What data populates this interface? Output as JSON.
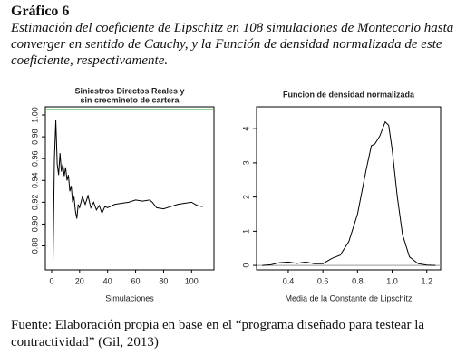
{
  "header": {
    "label": "Gráfico 6",
    "caption": "Estimación del coeficiente de Lipschitz en 108 simulaciones de Montecarlo hasta converger en sentido de Cauchy, y la Función de densidad normalizada de este coeficiente, respectivamente."
  },
  "chart_data": [
    {
      "type": "line",
      "title": [
        "Siniestros Directos Reales y",
        "sin crecmineto de cartera"
      ],
      "x_label": "Simulaciones",
      "color": "#000000",
      "x": [
        1,
        2,
        3,
        4,
        5,
        6,
        7,
        8,
        9,
        10,
        11,
        12,
        13,
        14,
        15,
        16,
        17,
        18,
        19,
        20,
        22,
        24,
        26,
        28,
        30,
        32,
        34,
        36,
        38,
        40,
        45,
        50,
        55,
        60,
        65,
        70,
        72,
        75,
        80,
        85,
        90,
        95,
        100,
        104,
        108
      ],
      "values": [
        0.865,
        0.96,
        0.995,
        0.955,
        0.945,
        0.965,
        0.948,
        0.955,
        0.944,
        0.952,
        0.94,
        0.945,
        0.93,
        0.935,
        0.92,
        0.925,
        0.912,
        0.905,
        0.918,
        0.915,
        0.925,
        0.918,
        0.926,
        0.915,
        0.92,
        0.913,
        0.917,
        0.91,
        0.916,
        0.915,
        0.918,
        0.919,
        0.92,
        0.922,
        0.921,
        0.922,
        0.92,
        0.915,
        0.914,
        0.916,
        0.918,
        0.919,
        0.92,
        0.917,
        0.916
      ],
      "xlim": [
        -4.5,
        116
      ],
      "ylim": [
        0.858,
        1.0075
      ],
      "xticks": [
        0,
        20,
        40,
        60,
        80,
        100
      ],
      "yticks": [
        0.88,
        {
          "value": 0.9,
          "label": "0.90"
        },
        0.92,
        0.94,
        0.96,
        0.98,
        {
          "value": 1,
          "label": "1.00"
        }
      ],
      "reference_line": {
        "value": 1.005,
        "color": "#33aa33"
      }
    },
    {
      "type": "line",
      "title": "Funcion de densidad normalizada",
      "x_label": "Media de la Constante de Lipschitz",
      "color": "#000000",
      "x": [
        0.25,
        0.3,
        0.35,
        0.4,
        0.45,
        0.5,
        0.55,
        0.6,
        0.65,
        0.7,
        0.75,
        0.8,
        0.85,
        0.88,
        0.9,
        0.93,
        0.96,
        0.98,
        1.0,
        1.03,
        1.06,
        1.1,
        1.15,
        1.2,
        1.25
      ],
      "values": [
        0.0,
        0.02,
        0.08,
        0.1,
        0.06,
        0.1,
        0.05,
        0.05,
        0.2,
        0.3,
        0.7,
        1.5,
        2.8,
        3.5,
        3.55,
        3.8,
        4.2,
        4.1,
        3.4,
        2.0,
        0.9,
        0.25,
        0.05,
        0.01,
        0.0
      ],
      "xlim": [
        0.217,
        1.28
      ],
      "ylim": [
        -0.13,
        4.64
      ],
      "xticks": [
        0.4,
        0.6,
        0.8,
        {
          "value": 1,
          "label": "1.0"
        },
        1.2
      ],
      "yticks": [
        0,
        1,
        2,
        3,
        4
      ],
      "reference_line": {
        "value": 0,
        "color": "#999999"
      }
    }
  ],
  "footer": "Fuente: Elaboración propia en base en el “programa diseñado para testear la contractividad” (Gil, 2013)"
}
